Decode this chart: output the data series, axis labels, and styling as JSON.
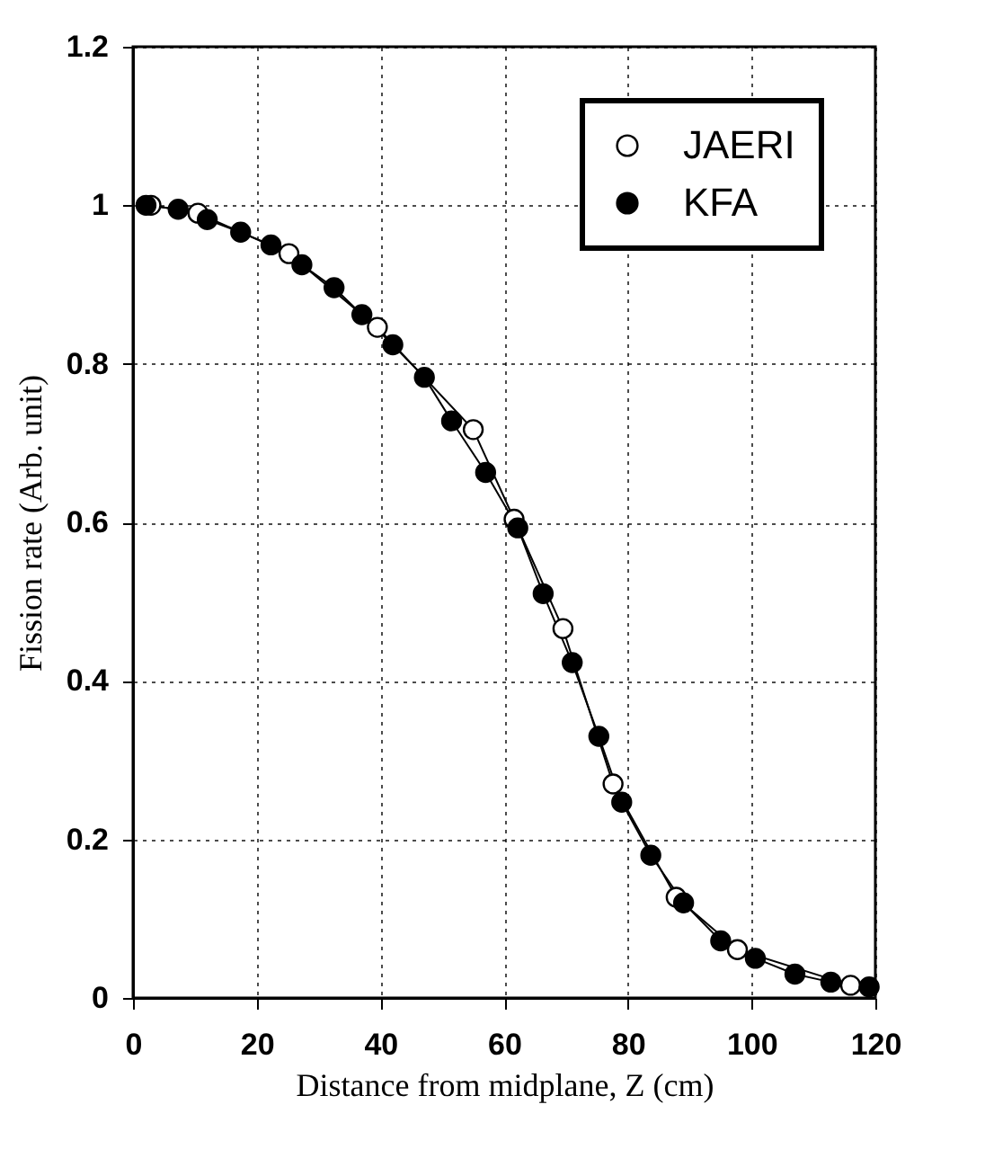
{
  "chart_data": {
    "type": "line",
    "xlabel": "Distance from midplane, Z (cm)",
    "ylabel": "Fission rate (Arb. unit)",
    "xlim": [
      0,
      120
    ],
    "xticks": [
      0,
      20,
      40,
      60,
      80,
      100,
      120
    ],
    "ylim": [
      0,
      1.2
    ],
    "yticks": [
      0,
      0.2,
      0.4,
      0.6,
      0.8,
      1,
      1.2
    ],
    "grid": true,
    "legend": "top right",
    "marker": "circle",
    "series": [
      {
        "name": "JAERI",
        "color": "#000000",
        "line_style": "solid",
        "x": [
          2.9,
          10.5,
          25.2,
          39.5,
          55,
          61.6,
          69.5,
          77.6,
          87.8,
          97.7,
          116
        ],
        "values": [
          1.0,
          0.99,
          0.939,
          0.846,
          0.717,
          0.604,
          0.466,
          0.27,
          0.127,
          0.061,
          0.016
        ]
      },
      {
        "name": "KFA",
        "color": "#000000",
        "line_style": "solid",
        "x": [
          2.1,
          7.3,
          12,
          17.4,
          22.3,
          27.3,
          32.5,
          37,
          42,
          47.1,
          51.5,
          57,
          62.2,
          66.3,
          71,
          75.3,
          79,
          83.7,
          89,
          95,
          100.6,
          107,
          112.8,
          119
        ],
        "values": [
          1.0,
          0.995,
          0.982,
          0.966,
          0.95,
          0.925,
          0.896,
          0.862,
          0.824,
          0.783,
          0.728,
          0.663,
          0.593,
          0.51,
          0.423,
          0.33,
          0.247,
          0.18,
          0.12,
          0.072,
          0.05,
          0.03,
          0.02,
          0.014
        ]
      }
    ]
  }
}
